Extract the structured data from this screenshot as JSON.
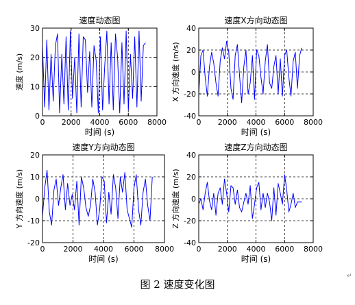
{
  "figure": {
    "caption": "图 2  速度变化图",
    "paragraph_mark": "↵"
  },
  "chart_data": [
    {
      "type": "line",
      "title": "速度动态图",
      "xlabel": "时间 (s)",
      "ylabel": "速度 (m/s)",
      "xlim": [
        0,
        8000
      ],
      "ylim": [
        0,
        30
      ],
      "xticks": [
        0,
        2000,
        4000,
        6000,
        8000
      ],
      "yticks": [
        0,
        10,
        20,
        30
      ],
      "grid": "dashed",
      "line_color": "#0000ff",
      "x": [
        0,
        150,
        300,
        450,
        600,
        750,
        900,
        1050,
        1200,
        1350,
        1500,
        1650,
        1800,
        1950,
        2100,
        2250,
        2400,
        2550,
        2700,
        2850,
        3000,
        3150,
        3300,
        3450,
        3600,
        3750,
        3900,
        4050,
        4200,
        4350,
        4500,
        4650,
        4800,
        4950,
        5100,
        5250,
        5400,
        5550,
        5700,
        5850,
        6000,
        6150,
        6300,
        6450,
        6600,
        6750,
        6900,
        7050,
        7200
      ],
      "y": [
        24,
        3,
        26,
        2,
        21,
        5,
        24,
        28,
        1,
        21,
        4,
        27,
        2,
        29,
        6,
        20,
        1,
        28,
        3,
        27,
        26,
        8,
        22,
        3,
        24,
        19,
        1,
        27,
        2,
        17,
        29,
        4,
        25,
        2,
        28,
        20,
        1,
        25,
        4,
        29,
        2,
        21,
        6,
        27,
        3,
        29,
        5,
        24,
        25
      ]
    },
    {
      "type": "line",
      "title": "速度X方向动态图",
      "xlabel": "时间 (s)",
      "ylabel": "X 方向速度 (m/s)",
      "xlim": [
        0,
        8000
      ],
      "ylim": [
        -40,
        40
      ],
      "xticks": [
        0,
        2000,
        4000,
        6000,
        8000
      ],
      "yticks": [
        -40,
        -20,
        0,
        20,
        40
      ],
      "grid": "dashed",
      "line_color": "#0000ff",
      "x": [
        0,
        150,
        300,
        450,
        600,
        750,
        900,
        1050,
        1200,
        1350,
        1500,
        1650,
        1800,
        1950,
        2100,
        2250,
        2400,
        2550,
        2700,
        2850,
        3000,
        3150,
        3300,
        3450,
        3600,
        3750,
        3900,
        4050,
        4200,
        4350,
        4500,
        4650,
        4800,
        4950,
        5100,
        5250,
        5400,
        5550,
        5700,
        5850,
        6000,
        6150,
        6300,
        6450,
        6600,
        6750,
        6900,
        7050,
        7200
      ],
      "y": [
        -20,
        15,
        20,
        -5,
        -22,
        5,
        18,
        8,
        -10,
        -22,
        10,
        22,
        12,
        28,
        18,
        -15,
        -25,
        15,
        25,
        -3,
        -28,
        5,
        20,
        -20,
        -10,
        15,
        -25,
        20,
        15,
        -5,
        -20,
        10,
        25,
        -10,
        -15,
        5,
        15,
        -20,
        12,
        -22,
        15,
        20,
        -5,
        -22,
        10,
        18,
        -15,
        15,
        22
      ]
    },
    {
      "type": "line",
      "title": "速度Y方向动态图",
      "xlabel": "时间 (s)",
      "ylabel": "Y 方向速度 (m/s)",
      "xlim": [
        0,
        8000
      ],
      "ylim": [
        -20,
        20
      ],
      "xticks": [
        0,
        2000,
        4000,
        6000,
        8000
      ],
      "yticks": [
        -20,
        -10,
        0,
        10,
        20
      ],
      "grid": "dashed",
      "line_color": "#0000ff",
      "x": [
        0,
        150,
        300,
        450,
        600,
        750,
        900,
        1050,
        1200,
        1350,
        1500,
        1650,
        1800,
        1950,
        2100,
        2250,
        2400,
        2550,
        2700,
        2850,
        3000,
        3150,
        3300,
        3450,
        3600,
        3750,
        3900,
        4050,
        4200,
        4350,
        4500,
        4650,
        4800,
        4950,
        5100,
        5250,
        5400,
        5550,
        5700,
        5850,
        6000,
        6150,
        6300,
        6450,
        6600,
        6750,
        6900,
        7050,
        7200
      ],
      "y": [
        -8,
        5,
        13,
        -6,
        -12,
        4,
        9,
        -3,
        5,
        11,
        -5,
        7,
        -3,
        2,
        -5,
        8,
        -12,
        10,
        5,
        -4,
        -8,
        -3,
        9,
        3,
        -12,
        -5,
        10,
        8,
        -11,
        3,
        -7,
        11,
        5,
        -9,
        10,
        3,
        12,
        -5,
        -9,
        -13,
        5,
        11,
        -5,
        -12,
        3,
        9,
        -3,
        -10,
        10
      ]
    },
    {
      "type": "line",
      "title": "速度Z方向动态图",
      "xlabel": "时间 (s)",
      "ylabel": "Z 方向速度 (m/s)",
      "xlim": [
        0,
        8000
      ],
      "ylim": [
        -40,
        40
      ],
      "xticks": [
        0,
        2000,
        4000,
        6000,
        8000
      ],
      "yticks": [
        -40,
        -20,
        0,
        20,
        40
      ],
      "grid": "dashed",
      "line_color": "#0000ff",
      "x": [
        0,
        150,
        300,
        450,
        600,
        750,
        900,
        1050,
        1200,
        1350,
        1500,
        1650,
        1800,
        1950,
        2100,
        2250,
        2400,
        2550,
        2700,
        2850,
        3000,
        3150,
        3300,
        3450,
        3600,
        3750,
        3900,
        4050,
        4200,
        4350,
        4500,
        4650,
        4800,
        4950,
        5100,
        5250,
        5400,
        5550,
        5700,
        5850,
        6000,
        6150,
        6300,
        6450,
        6600,
        6750,
        6900,
        7050,
        7200
      ],
      "y": [
        -5,
        0,
        -10,
        5,
        15,
        -2,
        -10,
        5,
        -15,
        5,
        10,
        -5,
        18,
        5,
        -12,
        12,
        10,
        -5,
        8,
        -8,
        -12,
        -3,
        5,
        -5,
        12,
        -18,
        -5,
        10,
        15,
        -10,
        5,
        -8,
        5,
        -3,
        -20,
        10,
        -15,
        14,
        5,
        -5,
        22,
        8,
        -12,
        -5,
        5,
        -8,
        -3,
        -3,
        -3
      ]
    }
  ]
}
